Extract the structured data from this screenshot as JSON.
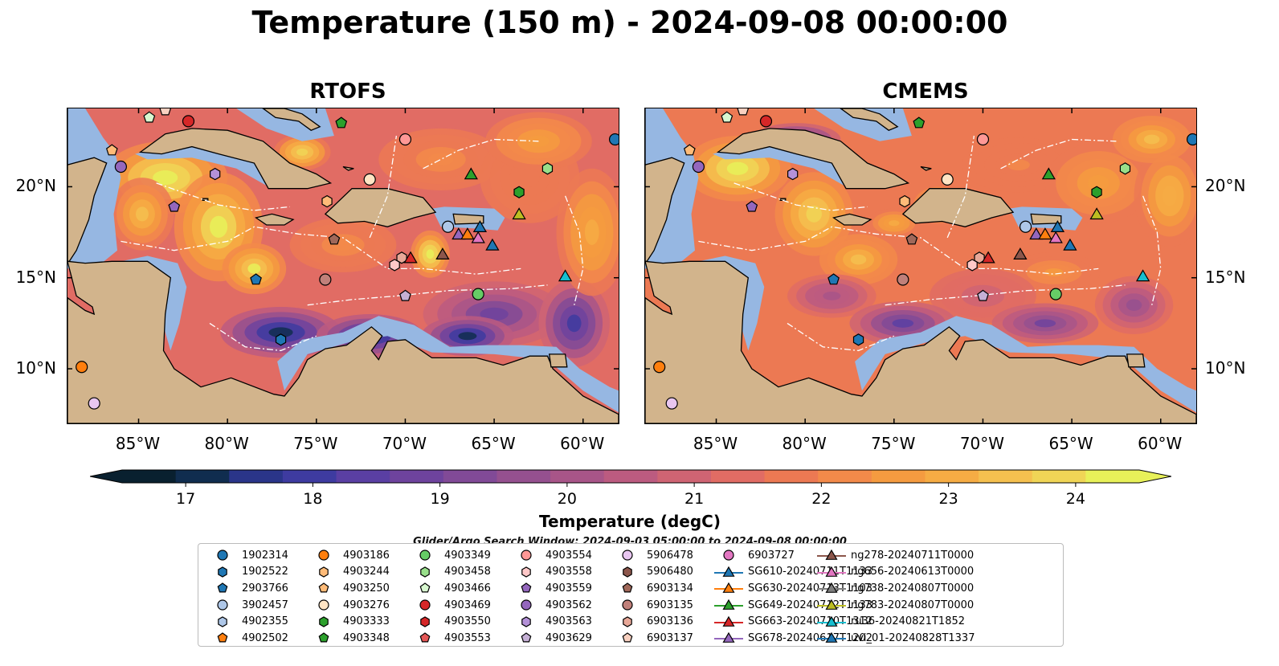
{
  "title": "Temperature (150 m) - 2024-09-08 00:00:00",
  "panels": [
    {
      "title": "RTOFS"
    },
    {
      "title": "CMEMS"
    }
  ],
  "axes": {
    "x_ticks": [
      "85°W",
      "80°W",
      "75°W",
      "70°W",
      "65°W",
      "60°W"
    ],
    "y_ticks": [
      "20°N",
      "15°N",
      "10°N"
    ],
    "lon_values": [
      -85,
      -80,
      -75,
      -70,
      -65,
      -60
    ],
    "lat_values": [
      20,
      15,
      10
    ],
    "lon_range": [
      -89,
      -58
    ],
    "lat_range": [
      7,
      24.3
    ]
  },
  "colorbar": {
    "label": "Temperature (degC)",
    "ticks": [
      "17",
      "18",
      "19",
      "20",
      "21",
      "22",
      "23",
      "24"
    ],
    "tick_values": [
      17,
      18,
      19,
      20,
      21,
      22,
      23,
      24
    ],
    "range": [
      16.5,
      24.5
    ],
    "extend": "both",
    "colors": [
      "#09202f",
      "#102d4f",
      "#2a3589",
      "#3e3ba0",
      "#5a3fa3",
      "#6e439d",
      "#814a97",
      "#95508f",
      "#a85588",
      "#bc5b80",
      "#cf6473",
      "#e16c64",
      "#ec7953",
      "#f38a4a",
      "#f59b40",
      "#f6ac44",
      "#f5c04f",
      "#f0d556",
      "#e8f159"
    ]
  },
  "search_window": "Glider/Argo Search Window: 2024-09-03 05:00:00 to 2024-09-08 00:00:00",
  "legend": [
    {
      "label": "1902314",
      "marker": "circle",
      "color": "#1f77b4"
    },
    {
      "label": "1902522",
      "marker": "hexagon",
      "color": "#1f77b4"
    },
    {
      "label": "2903766",
      "marker": "pentagon",
      "color": "#1f77b4"
    },
    {
      "label": "3902457",
      "marker": "circle",
      "color": "#aec7e8"
    },
    {
      "label": "4902355",
      "marker": "hexagon",
      "color": "#aec7e8"
    },
    {
      "label": "4902502",
      "marker": "pentagon",
      "color": "#ff7f0e"
    },
    {
      "label": "4903186",
      "marker": "circle",
      "color": "#ff7f0e"
    },
    {
      "label": "4903244",
      "marker": "hexagon",
      "color": "#ffbb78"
    },
    {
      "label": "4903250",
      "marker": "pentagon",
      "color": "#ffbb78"
    },
    {
      "label": "4903276",
      "marker": "circle",
      "color": "#ffe4c4"
    },
    {
      "label": "4903333",
      "marker": "hexagon",
      "color": "#2ca02c"
    },
    {
      "label": "4903348",
      "marker": "pentagon",
      "color": "#2ca02c"
    },
    {
      "label": "4903349",
      "marker": "circle",
      "color": "#66cc66"
    },
    {
      "label": "4903458",
      "marker": "hexagon",
      "color": "#98df8a"
    },
    {
      "label": "4903466",
      "marker": "pentagon",
      "color": "#d8f8d0"
    },
    {
      "label": "4903469",
      "marker": "circle",
      "color": "#d62728"
    },
    {
      "label": "4903550",
      "marker": "hexagon",
      "color": "#d62728"
    },
    {
      "label": "4903553",
      "marker": "pentagon",
      "color": "#e45756"
    },
    {
      "label": "4903554",
      "marker": "circle",
      "color": "#ff9896"
    },
    {
      "label": "4903558",
      "marker": "hexagon",
      "color": "#ffc8c8"
    },
    {
      "label": "4903559",
      "marker": "pentagon",
      "color": "#9467bd"
    },
    {
      "label": "4903562",
      "marker": "circle",
      "color": "#9467bd"
    },
    {
      "label": "4903563",
      "marker": "hexagon",
      "color": "#b491d8"
    },
    {
      "label": "4903629",
      "marker": "pentagon",
      "color": "#c5b0d5"
    },
    {
      "label": "5906478",
      "marker": "circle",
      "color": "#e8c6f0"
    },
    {
      "label": "5906480",
      "marker": "hexagon",
      "color": "#8c564b"
    },
    {
      "label": "6903134",
      "marker": "pentagon",
      "color": "#a0685a"
    },
    {
      "label": "6903135",
      "marker": "circle",
      "color": "#c0807a"
    },
    {
      "label": "6903136",
      "marker": "hexagon",
      "color": "#e8a898"
    },
    {
      "label": "6903137",
      "marker": "pentagon",
      "color": "#f8d0c0"
    },
    {
      "label": "6903727",
      "marker": "circle",
      "color": "#e377c2"
    },
    {
      "label": "SG610-20240711T1133",
      "marker": "triangle",
      "color": "#1f77b4"
    },
    {
      "label": "SG630-20240713T1103",
      "marker": "triangle",
      "color": "#ff7f0e"
    },
    {
      "label": "SG649-20240712T1133",
      "marker": "triangle",
      "color": "#2ca02c"
    },
    {
      "label": "SG663-20240710T1312",
      "marker": "triangle",
      "color": "#d62728"
    },
    {
      "label": "SG678-20240617T1202",
      "marker": "triangle",
      "color": "#9467bd"
    },
    {
      "label": "ng278-20240711T0000",
      "marker": "triangle",
      "color": "#8c564b"
    },
    {
      "label": "ng656-20240613T0000",
      "marker": "triangle",
      "color": "#e377c2"
    },
    {
      "label": "ng738-20240807T0000",
      "marker": "triangle",
      "color": "#7f7f7f"
    },
    {
      "label": "ng783-20240807T0000",
      "marker": "triangle",
      "color": "#bcbd22"
    },
    {
      "label": "ru36-20240821T1852",
      "marker": "triangle",
      "color": "#17becf"
    },
    {
      "label": "uvi_01-20240828T1337",
      "marker": "triangle",
      "color": "#1f77b4"
    }
  ],
  "chart_data": {
    "type": "heatmap",
    "title": "Temperature (150 m) - 2024-09-08 00:00:00",
    "panels": [
      "RTOFS",
      "CMEMS"
    ],
    "variable": "Temperature (degC)",
    "depth_m": 150,
    "color_range": [
      16.5,
      24.5
    ],
    "region": {
      "lon": [
        -89,
        -58
      ],
      "lat": [
        7,
        24.3
      ]
    },
    "platforms": [
      {
        "id": "1902314",
        "lon": -58.2,
        "lat": 22.6
      },
      {
        "id": "4903186",
        "lon": -88.2,
        "lat": 10.1
      },
      {
        "id": "5906478",
        "lon": -87.5,
        "lat": 8.1
      },
      {
        "id": "4903250",
        "lon": -86.5,
        "lat": 22.0
      },
      {
        "id": "4903562",
        "lon": -86.0,
        "lat": 21.1
      },
      {
        "id": "4903466",
        "lon": -84.4,
        "lat": 23.8
      },
      {
        "id": "6903137",
        "lon": -83.5,
        "lat": 24.2
      },
      {
        "id": "4903469",
        "lon": -82.2,
        "lat": 23.6
      },
      {
        "id": "4903559",
        "lon": -83.0,
        "lat": 18.9
      },
      {
        "id": "4903563",
        "lon": -80.7,
        "lat": 20.7
      },
      {
        "id": "4903348",
        "lon": -73.6,
        "lat": 23.5
      },
      {
        "id": "4903554",
        "lon": -70.0,
        "lat": 22.6
      },
      {
        "id": "4903276",
        "lon": -72.0,
        "lat": 20.4
      },
      {
        "id": "4903244",
        "lon": -74.4,
        "lat": 19.2
      },
      {
        "id": "6903134",
        "lon": -74.0,
        "lat": 17.1
      },
      {
        "id": "2903766",
        "lon": -78.4,
        "lat": 14.9
      },
      {
        "id": "6903135",
        "lon": -74.5,
        "lat": 14.9
      },
      {
        "id": "6903136",
        "lon": -70.2,
        "lat": 16.1
      },
      {
        "id": "4903558",
        "lon": -70.6,
        "lat": 15.7
      },
      {
        "id": "4903629",
        "lon": -70.0,
        "lat": 14.0
      },
      {
        "id": "1902522",
        "lon": -77.0,
        "lat": 11.6
      },
      {
        "id": "3902457",
        "lon": -67.6,
        "lat": 17.8
      },
      {
        "id": "4903349",
        "lon": -65.9,
        "lat": 14.1
      },
      {
        "id": "4903333",
        "lon": -63.6,
        "lat": 19.7
      },
      {
        "id": "4903458",
        "lon": -62.0,
        "lat": 21.0
      },
      {
        "id": "SG649-20240712T1133",
        "lon": -66.3,
        "lat": 20.7
      },
      {
        "id": "ng783-20240807T0000",
        "lon": -63.6,
        "lat": 18.5
      },
      {
        "id": "SG678-20240617T1202",
        "lon": -67.0,
        "lat": 17.4
      },
      {
        "id": "SG630-20240713T1103",
        "lon": -66.5,
        "lat": 17.4
      },
      {
        "id": "uvi_01-20240828T1337",
        "lon": -65.8,
        "lat": 17.8
      },
      {
        "id": "ng656-20240613T0000",
        "lon": -65.9,
        "lat": 17.2
      },
      {
        "id": "SG610-20240711T1133",
        "lon": -65.1,
        "lat": 16.8
      },
      {
        "id": "SG663-20240710T1312",
        "lon": -69.7,
        "lat": 16.1
      },
      {
        "id": "ng278-20240711T0000",
        "lon": -67.9,
        "lat": 16.3
      },
      {
        "id": "ru36-20240821T1852",
        "lon": -61.0,
        "lat": 15.1
      }
    ]
  }
}
